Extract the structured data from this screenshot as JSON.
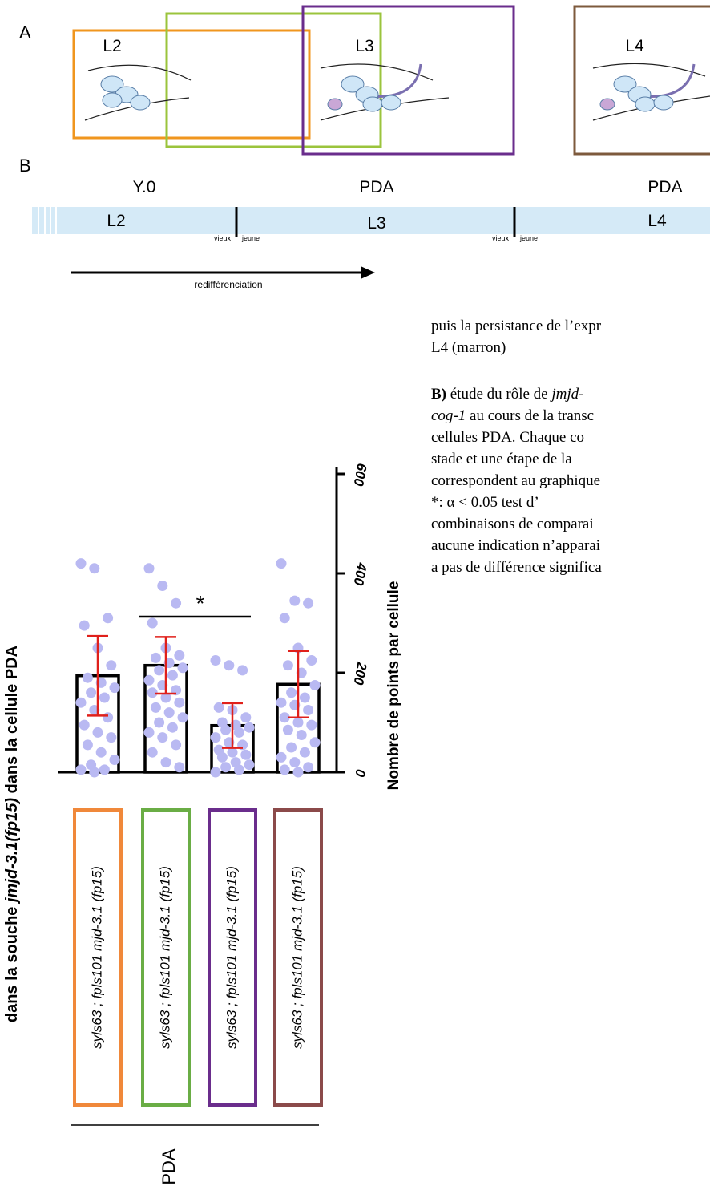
{
  "panel_a": {
    "label": "A",
    "stages": [
      "L2",
      "L3",
      "L4"
    ]
  },
  "panel_b": {
    "label": "B",
    "identities": [
      "Y.0",
      "PDA",
      "PDA"
    ],
    "timeline": [
      "L2",
      "L3",
      "L4"
    ],
    "markers": [
      [
        "vieux",
        "jeune"
      ],
      [
        "vieux",
        "jeune"
      ]
    ],
    "arrow_label": "redifférenciation"
  },
  "text_block": {
    "lines": [
      [
        "puis la persistance de l’expr"
      ],
      [
        "L4 (marron)"
      ],
      [
        "B)",
        " étude du rôle de ",
        "jmjd-"
      ],
      [
        "cog-1",
        " au cours de la transc"
      ],
      [
        "cellules PDA. Chaque co"
      ],
      [
        "stade et une étape de la"
      ],
      [
        "correspondent au graphique"
      ],
      [
        "*: α < 0.05 test d’"
      ],
      [
        "combinaisons de comparai"
      ],
      [
        "aucune indication n’apparai"
      ],
      [
        "a pas de différence significa"
      ]
    ]
  },
  "chart_data": {
    "type": "bar",
    "left_label": [
      "dans la souche ",
      "jmjd-3.1(fp15)",
      " dans la cellule PDA"
    ],
    "y_label": "Nombre de points par cellule",
    "group_label": "PDA",
    "significance": "*",
    "categories": [
      "syls63 ; fpls101 mjd-3.1 (fp15)",
      "syls63 ; fpls101 mjd-3.1 (fp15)",
      "syls63 ; fpls101 mjd-3.1 (fp15)",
      "syls63 ; fpls101 mjd-3.1 (fp15)"
    ],
    "category_colors": [
      "#f0883a",
      "#6aad45",
      "#6a2d8c",
      "#8b4a4a"
    ],
    "values": [
      194,
      215,
      94,
      177
    ],
    "errors": [
      80,
      57,
      45,
      67
    ],
    "points": [
      [
        420,
        410,
        310,
        295,
        250,
        215,
        190,
        180,
        170,
        160,
        150,
        140,
        125,
        110,
        95,
        80,
        70,
        55,
        40,
        25,
        15,
        5,
        5,
        0
      ],
      [
        410,
        375,
        340,
        300,
        250,
        235,
        230,
        220,
        210,
        205,
        195,
        185,
        175,
        165,
        160,
        150,
        140,
        130,
        120,
        110,
        100,
        90,
        80,
        70,
        55,
        40,
        20,
        10
      ],
      [
        225,
        215,
        205,
        130,
        125,
        110,
        100,
        95,
        90,
        85,
        80,
        70,
        60,
        55,
        45,
        40,
        35,
        30,
        20,
        15,
        10,
        5,
        0
      ],
      [
        420,
        345,
        340,
        310,
        250,
        225,
        215,
        200,
        175,
        160,
        150,
        140,
        135,
        125,
        110,
        100,
        95,
        85,
        75,
        60,
        50,
        40,
        30,
        20,
        10,
        5,
        0
      ]
    ],
    "point_color": "#b9b9f2",
    "error_color": "#e0201b",
    "ylim": [
      0,
      600
    ],
    "yticks": [
      0,
      200,
      400,
      600
    ]
  }
}
